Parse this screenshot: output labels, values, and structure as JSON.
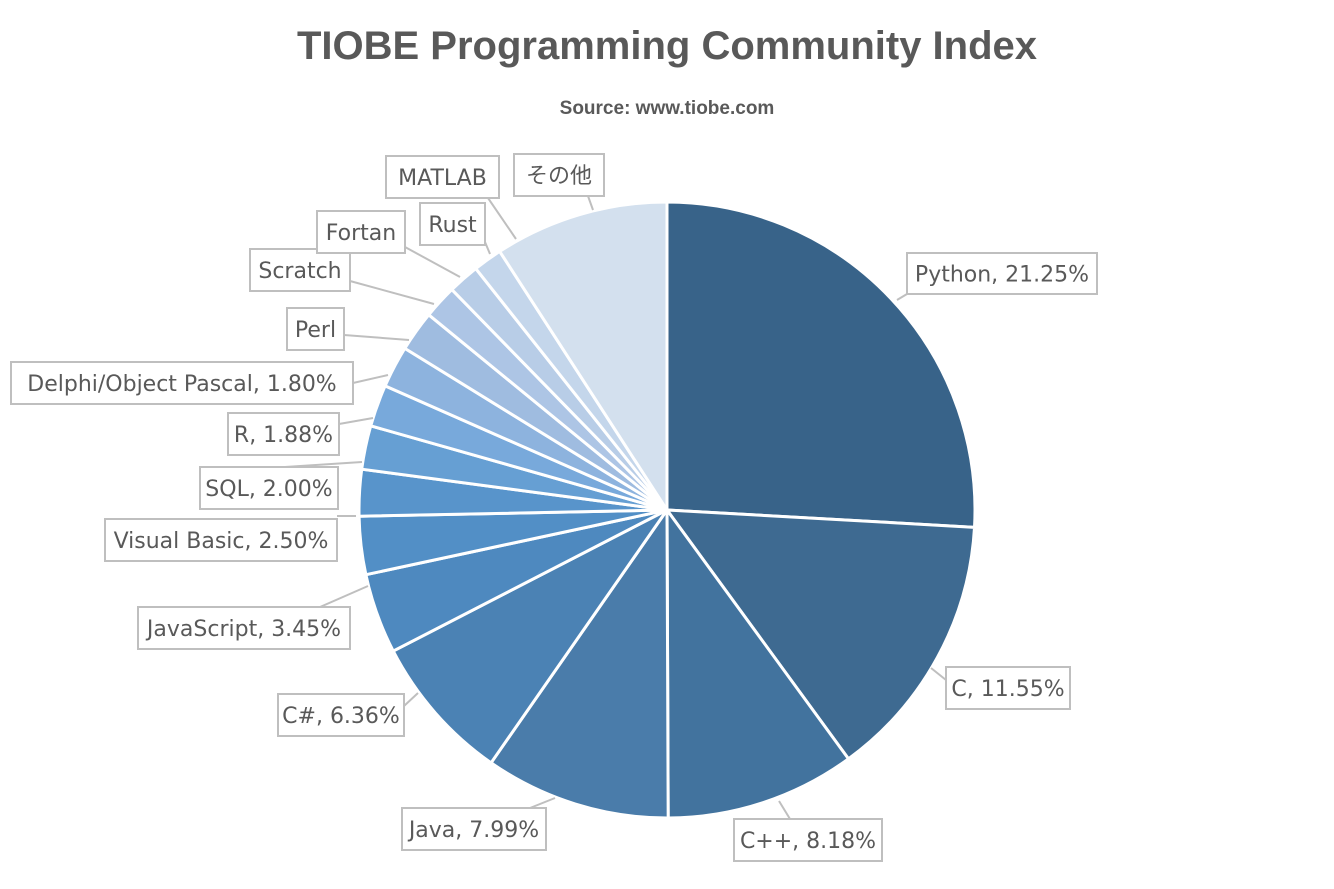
{
  "chart_data": {
    "type": "pie",
    "title": "TIOBE Programming Community Index",
    "subtitle": "Source: www.tiobe.com",
    "slices": [
      {
        "label": "Python",
        "value": 21.25,
        "display": "Python, 21.25%",
        "color": "#386389"
      },
      {
        "label": "C",
        "value": 11.55,
        "display": "C, 11.55%",
        "color": "#3e6a91"
      },
      {
        "label": "C++",
        "value": 8.18,
        "display": "C++, 8.18%",
        "color": "#42739e"
      },
      {
        "label": "Java",
        "value": 7.99,
        "display": "Java, 7.99%",
        "color": "#4a7caa"
      },
      {
        "label": "C#",
        "value": 6.36,
        "display": "C#, 6.36%",
        "color": "#4b82b4"
      },
      {
        "label": "JavaScript",
        "value": 3.45,
        "display": "JavaScript, 3.45%",
        "color": "#4e89bf"
      },
      {
        "label": "Visual Basic",
        "value": 2.5,
        "display": "Visual Basic, 2.50%",
        "color": "#528fc6"
      },
      {
        "label": "SQL",
        "value": 2.0,
        "display": "SQL, 2.00%",
        "color": "#5894cb"
      },
      {
        "label": "R",
        "value": 1.88,
        "display": "R, 1.88%",
        "color": "#669fd3"
      },
      {
        "label": "Delphi/Object Pascal",
        "value": 1.8,
        "display": "Delphi/Object Pascal, 1.80%",
        "color": "#78a9db"
      },
      {
        "label": "Perl",
        "value": 1.8,
        "display": "Perl",
        "color": "#8db3de"
      },
      {
        "label": "Scratch",
        "value": 1.75,
        "display": "Scratch",
        "color": "#9fbce0"
      },
      {
        "label": "Fortan",
        "value": 1.45,
        "display": "Fortan",
        "color": "#adc5e5"
      },
      {
        "label": "Rust",
        "value": 1.35,
        "display": "Rust",
        "color": "#b8cde7"
      },
      {
        "label": "MATLAB",
        "value": 1.25,
        "display": "MATLAB",
        "color": "#c4d6eb"
      },
      {
        "label": "その他",
        "value": 7.5,
        "display": "その他",
        "color": "#d3e0ee"
      }
    ]
  }
}
